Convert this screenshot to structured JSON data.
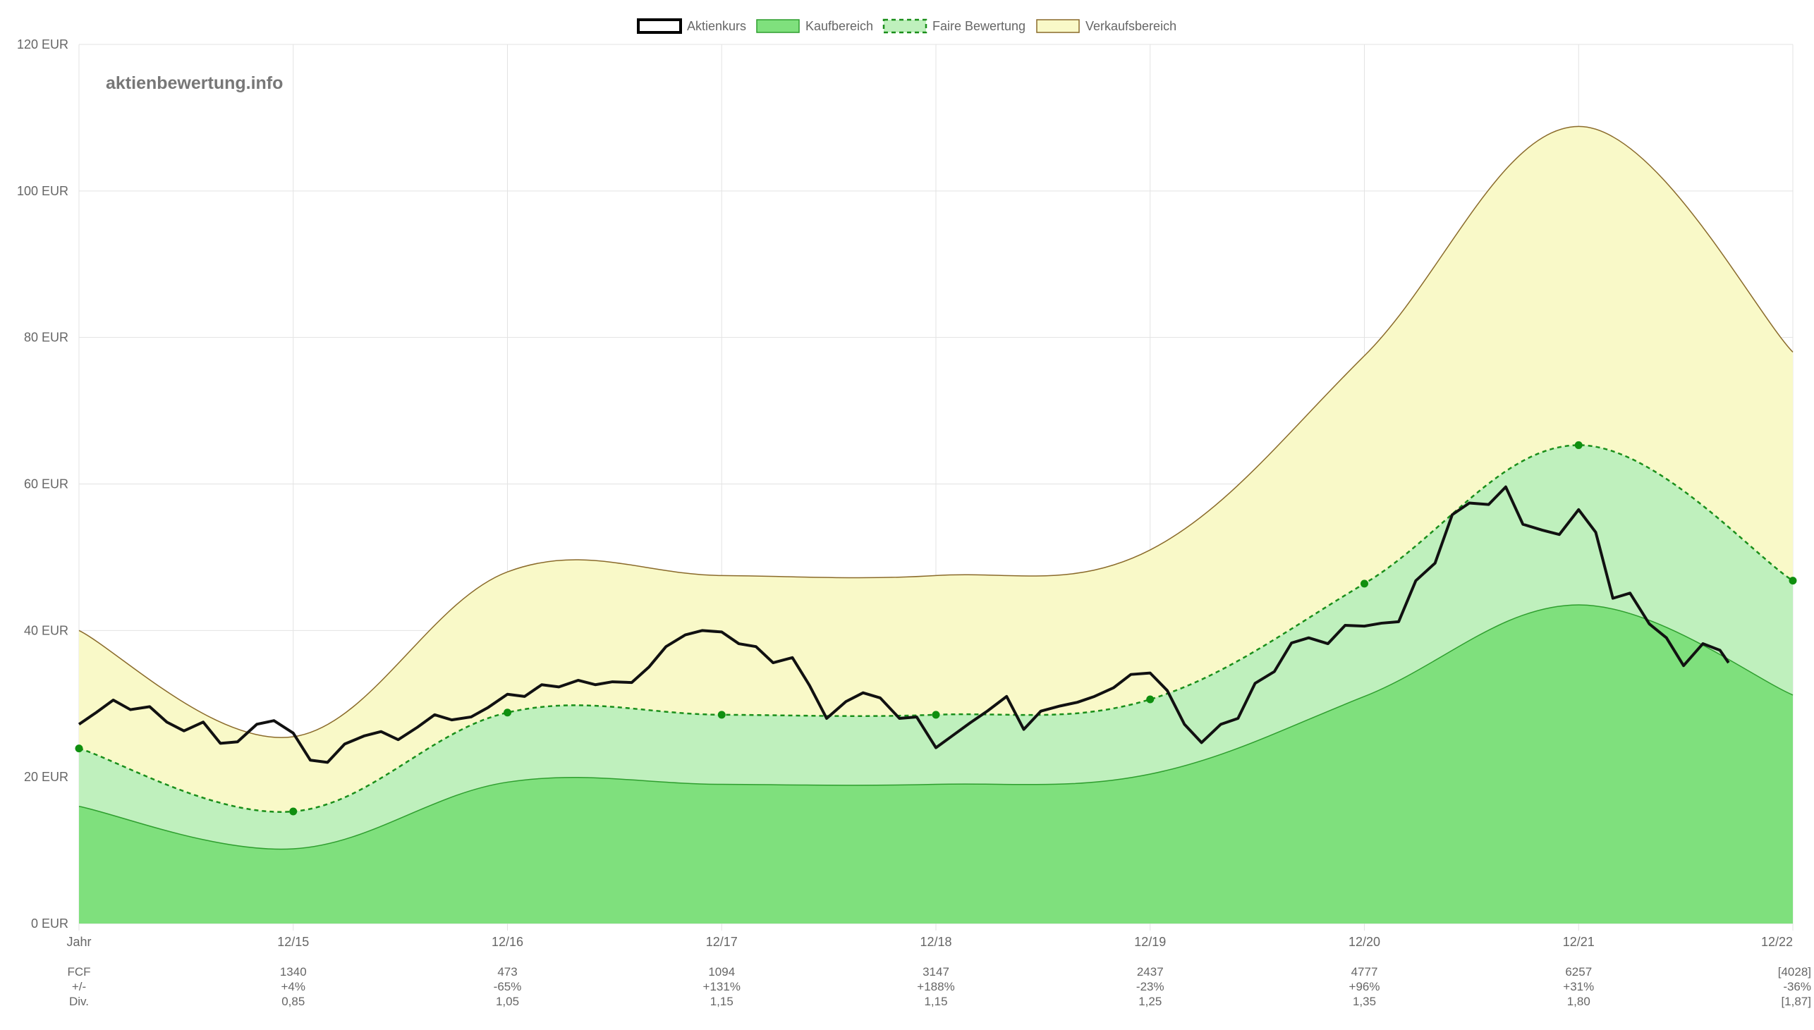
{
  "watermark": "aktienbewertung.info",
  "legend": [
    {
      "label": "Aktienkurs",
      "key": "price"
    },
    {
      "label": "Kaufbereich",
      "key": "buy"
    },
    {
      "label": "Faire Bewertung",
      "key": "fair"
    },
    {
      "label": "Verkaufsbereich",
      "key": "sell"
    }
  ],
  "colors": {
    "price": "#111111",
    "buy_fill": "#7fe07d",
    "buy_line": "#2e9e2e",
    "fair_fill": "#bff0bd",
    "fair_line": "#1a8f1a",
    "fair_point": "#0f8f0f",
    "sell_fill": "#f9f9c8",
    "sell_line": "#8a6a2a",
    "grid": "#e3e3e3",
    "text": "#666666"
  },
  "table": {
    "header": "Jahr",
    "row_labels": [
      "FCF",
      "+/-",
      "Div."
    ],
    "columns": [
      {
        "year": "12/15",
        "fcf": "1340",
        "change": "+4%",
        "div": "0,85"
      },
      {
        "year": "12/16",
        "fcf": "473",
        "change": "-65%",
        "div": "1,05"
      },
      {
        "year": "12/17",
        "fcf": "1094",
        "change": "+131%",
        "div": "1,15"
      },
      {
        "year": "12/18",
        "fcf": "3147",
        "change": "+188%",
        "div": "1,15"
      },
      {
        "year": "12/19",
        "fcf": "2437",
        "change": "-23%",
        "div": "1,25"
      },
      {
        "year": "12/20",
        "fcf": "4777",
        "change": "+96%",
        "div": "1,35"
      },
      {
        "year": "12/21",
        "fcf": "6257",
        "change": "+31%",
        "div": "1,80"
      },
      {
        "year": "12/22",
        "fcf": "[4028]",
        "change": "-36%",
        "div": "[1,87]"
      }
    ]
  },
  "chart_data": {
    "type": "area",
    "x_axis": {
      "min": 2014,
      "max": 2022,
      "unit": "years (12/YY marks)"
    },
    "y_axis": {
      "min": 0,
      "max": 120,
      "step": 20,
      "unit_suffix": " EUR"
    },
    "yticks": [
      "0 EUR",
      "20 EUR",
      "40 EUR",
      "60 EUR",
      "80 EUR",
      "100 EUR",
      "120 EUR"
    ],
    "grid": true,
    "legend_position": "top-center",
    "series": [
      {
        "name": "Verkaufsbereich",
        "key": "sell",
        "points": [
          [
            2014,
            40.0
          ],
          [
            2015,
            25.5
          ],
          [
            2016,
            48.0
          ],
          [
            2017,
            47.5
          ],
          [
            2018,
            47.5
          ],
          [
            2019,
            51.0
          ],
          [
            2020,
            77.5
          ],
          [
            2021,
            108.8
          ],
          [
            2022,
            78.0
          ]
        ]
      },
      {
        "name": "Faire Bewertung",
        "key": "fair",
        "points": [
          [
            2014,
            23.9
          ],
          [
            2015,
            15.3
          ],
          [
            2016,
            28.8
          ],
          [
            2017,
            28.5
          ],
          [
            2018,
            28.5
          ],
          [
            2019,
            30.6
          ],
          [
            2020,
            46.4
          ],
          [
            2021,
            65.3
          ],
          [
            2022,
            46.8
          ]
        ]
      },
      {
        "name": "Kaufbereich",
        "key": "buy",
        "points": [
          [
            2014,
            16.0
          ],
          [
            2015,
            10.2
          ],
          [
            2016,
            19.3
          ],
          [
            2017,
            19.0
          ],
          [
            2018,
            19.0
          ],
          [
            2019,
            20.4
          ],
          [
            2020,
            31.0
          ],
          [
            2021,
            43.5
          ],
          [
            2022,
            31.2
          ]
        ]
      },
      {
        "name": "Aktienkurs",
        "key": "price",
        "points": [
          [
            2014.0,
            27.2
          ],
          [
            2014.08,
            28.8
          ],
          [
            2014.16,
            30.5
          ],
          [
            2014.24,
            29.2
          ],
          [
            2014.33,
            29.6
          ],
          [
            2014.41,
            27.5
          ],
          [
            2014.49,
            26.3
          ],
          [
            2014.58,
            27.5
          ],
          [
            2014.66,
            24.6
          ],
          [
            2014.74,
            24.8
          ],
          [
            2014.83,
            27.2
          ],
          [
            2014.91,
            27.7
          ],
          [
            2015.0,
            26.0
          ],
          [
            2015.08,
            22.3
          ],
          [
            2015.16,
            22.0
          ],
          [
            2015.24,
            24.5
          ],
          [
            2015.33,
            25.6
          ],
          [
            2015.41,
            26.2
          ],
          [
            2015.49,
            25.1
          ],
          [
            2015.58,
            26.8
          ],
          [
            2015.66,
            28.5
          ],
          [
            2015.74,
            27.8
          ],
          [
            2015.83,
            28.2
          ],
          [
            2015.91,
            29.5
          ],
          [
            2016.0,
            31.3
          ],
          [
            2016.08,
            31.0
          ],
          [
            2016.16,
            32.6
          ],
          [
            2016.24,
            32.3
          ],
          [
            2016.33,
            33.2
          ],
          [
            2016.41,
            32.6
          ],
          [
            2016.49,
            33.0
          ],
          [
            2016.58,
            32.9
          ],
          [
            2016.66,
            35.0
          ],
          [
            2016.74,
            37.8
          ],
          [
            2016.83,
            39.4
          ],
          [
            2016.91,
            40.0
          ],
          [
            2017.0,
            39.8
          ],
          [
            2017.08,
            38.2
          ],
          [
            2017.16,
            37.8
          ],
          [
            2017.24,
            35.6
          ],
          [
            2017.33,
            36.3
          ],
          [
            2017.41,
            32.5
          ],
          [
            2017.49,
            28.0
          ],
          [
            2017.58,
            30.3
          ],
          [
            2017.66,
            31.5
          ],
          [
            2017.74,
            30.8
          ],
          [
            2017.83,
            28.0
          ],
          [
            2017.91,
            28.2
          ],
          [
            2018.0,
            24.0
          ],
          [
            2018.08,
            25.7
          ],
          [
            2018.16,
            27.4
          ],
          [
            2018.24,
            29.0
          ],
          [
            2018.33,
            31.0
          ],
          [
            2018.41,
            26.5
          ],
          [
            2018.49,
            29.0
          ],
          [
            2018.58,
            29.7
          ],
          [
            2018.66,
            30.2
          ],
          [
            2018.74,
            31.0
          ],
          [
            2018.83,
            32.2
          ],
          [
            2018.91,
            34.0
          ],
          [
            2019.0,
            34.2
          ],
          [
            2019.08,
            31.8
          ],
          [
            2019.16,
            27.2
          ],
          [
            2019.24,
            24.7
          ],
          [
            2019.33,
            27.2
          ],
          [
            2019.41,
            28.0
          ],
          [
            2019.49,
            32.8
          ],
          [
            2019.58,
            34.4
          ],
          [
            2019.66,
            38.3
          ],
          [
            2019.74,
            39.0
          ],
          [
            2019.83,
            38.2
          ],
          [
            2019.91,
            40.7
          ],
          [
            2020.0,
            40.6
          ],
          [
            2020.08,
            41.0
          ],
          [
            2020.16,
            41.2
          ],
          [
            2020.24,
            46.8
          ],
          [
            2020.33,
            49.2
          ],
          [
            2020.41,
            55.8
          ],
          [
            2020.49,
            57.4
          ],
          [
            2020.58,
            57.2
          ],
          [
            2020.66,
            59.6
          ],
          [
            2020.74,
            54.5
          ],
          [
            2020.83,
            53.7
          ],
          [
            2020.91,
            53.1
          ],
          [
            2021.0,
            56.5
          ],
          [
            2021.08,
            53.4
          ],
          [
            2021.16,
            44.4
          ],
          [
            2021.24,
            45.1
          ],
          [
            2021.33,
            40.9
          ],
          [
            2021.41,
            39.0
          ],
          [
            2021.49,
            35.2
          ],
          [
            2021.58,
            38.2
          ],
          [
            2021.66,
            37.3
          ],
          [
            2021.7,
            35.6
          ]
        ]
      }
    ]
  }
}
